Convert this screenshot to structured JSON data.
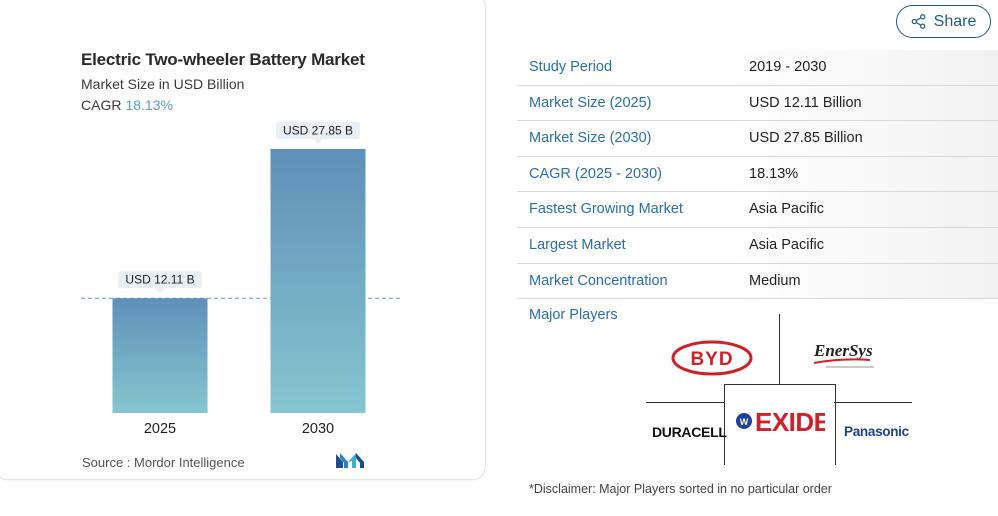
{
  "chart_header": {
    "title": "Electric Two-wheeler Battery Market",
    "subtitle": "Market Size in USD Billion",
    "cagr_label": "CAGR",
    "cagr_value": "18.13%"
  },
  "chart_data": {
    "type": "bar",
    "categories": [
      "2025",
      "2030"
    ],
    "values": [
      12.11,
      27.85
    ],
    "data_labels": [
      "USD 12.11 B",
      "USD 27.85 B"
    ],
    "title": "Electric Two-wheeler Battery Market",
    "subtitle": "Market Size in USD Billion",
    "xlabel": "",
    "ylabel": "",
    "ylim": [
      0,
      27.85
    ],
    "grid": false,
    "reference_line": "dashed line at 2025 value",
    "colors": {
      "bar_top": "#5f90b8",
      "bar_bottom": "#86c6cf",
      "label_bg": "#e9eff3",
      "dash": "#6b9cc2"
    }
  },
  "source": {
    "label": "Source :",
    "value": "Mordor Intelligence",
    "logo_icon": "mordor-intelligence-logo"
  },
  "share": {
    "label": "Share",
    "icon": "share-icon"
  },
  "table": {
    "rows": [
      {
        "key": "Study Period",
        "value": "2019 - 2030"
      },
      {
        "key": "Market Size (2025)",
        "value": "USD 12.11 Billion"
      },
      {
        "key": "Market Size (2030)",
        "value": "USD 27.85 Billion"
      },
      {
        "key": "CAGR (2025 - 2030)",
        "value": "18.13%"
      },
      {
        "key": "Fastest Growing Market",
        "value": "Asia Pacific"
      },
      {
        "key": "Largest Market",
        "value": "Asia Pacific"
      },
      {
        "key": "Market Concentration",
        "value": "Medium"
      }
    ]
  },
  "major_players": {
    "label": "Major Players",
    "logos": {
      "byd": "BYD",
      "enersys": "EnerSys",
      "duracell": "DURACELL",
      "exide": "EXIDE",
      "panasonic": "Panasonic"
    }
  },
  "disclaimer": "*Disclaimer: Major Players sorted in no particular order",
  "colors": {
    "accent_blue": "#2a6fa6",
    "share_border": "#1e5d7f"
  }
}
